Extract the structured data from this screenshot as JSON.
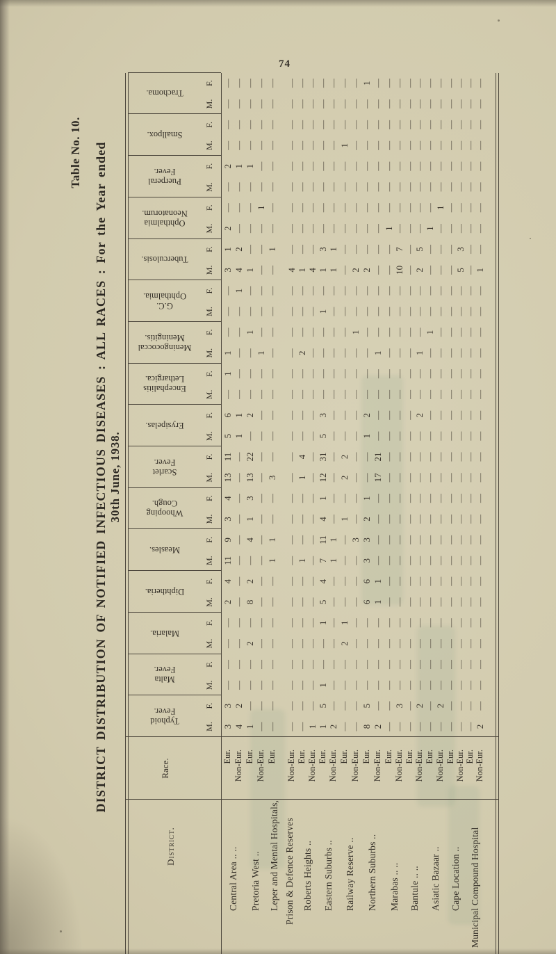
{
  "page": {
    "number": "74"
  },
  "title": "Table No. 10.",
  "heading": "DISTRICT DISTRIBUTION OF NOTIFIED INFECTIOUS DISEASES : ALL RACES : For the Year ended",
  "heading_date": "30th June, 1938.",
  "table": {
    "district_header": "District.",
    "race_header": "Race.",
    "sex_labels": [
      "M.",
      "F."
    ],
    "race_labels": [
      "Eur.",
      "Non-Eur."
    ],
    "districts": [
      {
        "name": "Central Area ..  ..",
        "lines": [
          "Central Area ..  .."
        ]
      },
      {
        "name": "Pretoria West ..",
        "lines": [
          "Pretoria West  .."
        ]
      },
      {
        "name": "Leper and Mental Hospitals, Prison & Defence Reserves",
        "lines": [
          "Leper and Mental Hospitals,",
          "Prison & Defence Reserves"
        ]
      },
      {
        "name": "Roberts Heights ..",
        "lines": [
          "Roberts Heights  .."
        ]
      },
      {
        "name": "Eastern Suburbs ..",
        "lines": [
          "Eastern Suburbs  .."
        ]
      },
      {
        "name": "Railway Reserve ..",
        "lines": [
          "Railway Reserve  .."
        ]
      },
      {
        "name": "Northern Suburbs ..",
        "lines": [
          "Northern Suburbs  .."
        ]
      },
      {
        "name": "Marabas ..  ..",
        "lines": [
          "Marabas ..  .."
        ]
      },
      {
        "name": "Bantule ..  ..",
        "lines": [
          "Bantule ..  .."
        ]
      },
      {
        "name": "Asiatic Bazaar ..",
        "lines": [
          "Asiatic Bazaar  .."
        ]
      },
      {
        "name": "Cape Location ..",
        "lines": [
          "Cape Location  .."
        ]
      },
      {
        "name": "Municipal Compound Hospital",
        "lines": [
          "Municipal Compound Hospital"
        ]
      }
    ],
    "diseases": [
      {
        "name": "Typhoid Fever.",
        "lines": [
          "Typhoid",
          "Fever."
        ],
        "m": [
          3,
          4,
          1,
          null,
          null,
          null,
          null,
          1,
          1,
          2,
          null,
          null,
          8,
          2,
          null,
          null,
          null,
          null,
          null,
          null,
          null,
          null,
          null,
          2
        ],
        "f": [
          3,
          2,
          null,
          null,
          null,
          null,
          null,
          null,
          5,
          null,
          null,
          null,
          5,
          null,
          null,
          3,
          null,
          2,
          null,
          2,
          null,
          null,
          null,
          null
        ]
      },
      {
        "name": "Malta Fever.",
        "lines": [
          "Malta",
          "Fever."
        ],
        "m": [
          null,
          null,
          null,
          null,
          null,
          null,
          null,
          null,
          1,
          null,
          null,
          null,
          null,
          null,
          null,
          null,
          null,
          null,
          null,
          null,
          null,
          null,
          null,
          null
        ],
        "f": [
          null,
          null,
          null,
          null,
          null,
          null,
          null,
          null,
          null,
          null,
          null,
          null,
          null,
          null,
          null,
          null,
          null,
          null,
          null,
          null,
          null,
          null,
          null,
          null
        ]
      },
      {
        "name": "Malaria.",
        "lines": [
          "Malaria."
        ],
        "m": [
          null,
          null,
          2,
          null,
          null,
          null,
          null,
          null,
          null,
          null,
          2,
          null,
          null,
          null,
          null,
          null,
          null,
          null,
          null,
          null,
          null,
          null,
          null,
          null
        ],
        "f": [
          null,
          null,
          null,
          null,
          null,
          null,
          null,
          null,
          1,
          null,
          1,
          null,
          null,
          null,
          null,
          null,
          null,
          null,
          null,
          null,
          null,
          null,
          null,
          null
        ]
      },
      {
        "name": "Diphtheria.",
        "lines": [
          "Diphtheria."
        ],
        "m": [
          2,
          null,
          8,
          null,
          null,
          null,
          null,
          null,
          5,
          null,
          null,
          null,
          6,
          1,
          null,
          null,
          null,
          null,
          null,
          null,
          null,
          null,
          null,
          null
        ],
        "f": [
          4,
          null,
          2,
          null,
          null,
          null,
          null,
          null,
          4,
          null,
          null,
          null,
          6,
          1,
          null,
          null,
          null,
          null,
          null,
          null,
          null,
          null,
          null,
          null
        ]
      },
      {
        "name": "Measles.",
        "lines": [
          "Measles."
        ],
        "m": [
          11,
          null,
          null,
          null,
          1,
          null,
          1,
          null,
          7,
          1,
          null,
          null,
          3,
          null,
          null,
          null,
          null,
          null,
          null,
          null,
          null,
          null,
          null,
          null
        ],
        "f": [
          9,
          null,
          4,
          null,
          1,
          null,
          null,
          null,
          11,
          1,
          null,
          3,
          3,
          null,
          null,
          null,
          null,
          null,
          null,
          null,
          null,
          null,
          null,
          null
        ]
      },
      {
        "name": "Whooping Cough.",
        "lines": [
          "Whooping",
          "Cough."
        ],
        "m": [
          3,
          null,
          1,
          null,
          null,
          null,
          null,
          null,
          4,
          null,
          1,
          null,
          2,
          null,
          null,
          null,
          null,
          null,
          null,
          null,
          null,
          null,
          null,
          null
        ],
        "f": [
          4,
          null,
          3,
          null,
          null,
          null,
          null,
          null,
          1,
          null,
          null,
          null,
          1,
          null,
          null,
          null,
          null,
          null,
          null,
          null,
          null,
          null,
          null,
          null
        ]
      },
      {
        "name": "Scarlet Fever.",
        "lines": [
          "Scarlet",
          "Fever."
        ],
        "m": [
          13,
          null,
          13,
          null,
          3,
          null,
          1,
          null,
          12,
          null,
          2,
          null,
          null,
          17,
          null,
          null,
          null,
          null,
          null,
          null,
          null,
          null,
          null,
          null
        ],
        "f": [
          11,
          null,
          22,
          null,
          null,
          null,
          4,
          null,
          31,
          null,
          2,
          null,
          null,
          21,
          null,
          null,
          null,
          null,
          null,
          null,
          null,
          null,
          null,
          null
        ]
      },
      {
        "name": "Erysipelas.",
        "lines": [
          "Erysipelas."
        ],
        "m": [
          5,
          1,
          null,
          null,
          null,
          null,
          null,
          null,
          5,
          null,
          null,
          null,
          1,
          null,
          null,
          null,
          null,
          null,
          null,
          null,
          null,
          null,
          null,
          null
        ],
        "f": [
          6,
          1,
          2,
          null,
          null,
          null,
          null,
          null,
          3,
          null,
          null,
          null,
          2,
          null,
          null,
          null,
          null,
          2,
          null,
          null,
          null,
          null,
          null,
          null
        ]
      },
      {
        "name": "Encephalitis Lethargica.",
        "lines": [
          "Encephalitis",
          "Lethargica."
        ],
        "m": [
          null,
          null,
          null,
          null,
          null,
          null,
          null,
          null,
          null,
          null,
          null,
          null,
          null,
          null,
          null,
          null,
          null,
          null,
          null,
          null,
          null,
          null,
          null,
          null
        ],
        "f": [
          1,
          null,
          null,
          null,
          null,
          null,
          null,
          null,
          null,
          null,
          null,
          null,
          null,
          null,
          null,
          null,
          null,
          null,
          null,
          null,
          null,
          null,
          null,
          null
        ]
      },
      {
        "name": "Meningococcal Meningitis.",
        "lines": [
          "Meningococcal",
          "Meningitis."
        ],
        "m": [
          1,
          null,
          null,
          1,
          null,
          null,
          2,
          null,
          null,
          null,
          null,
          null,
          null,
          1,
          null,
          null,
          null,
          1,
          null,
          null,
          null,
          null,
          null,
          null
        ],
        "f": [
          null,
          null,
          1,
          null,
          null,
          null,
          null,
          null,
          null,
          null,
          null,
          1,
          null,
          null,
          null,
          null,
          null,
          null,
          1,
          null,
          null,
          null,
          null,
          null
        ]
      },
      {
        "name": "G.C. Ophthalmia.",
        "lines": [
          "G.C.",
          "Ophthalmia."
        ],
        "m": [
          null,
          null,
          null,
          null,
          null,
          null,
          null,
          null,
          1,
          null,
          null,
          null,
          null,
          null,
          null,
          null,
          null,
          null,
          null,
          null,
          null,
          null,
          null,
          null
        ],
        "f": [
          null,
          1,
          null,
          null,
          null,
          null,
          null,
          null,
          null,
          null,
          null,
          null,
          null,
          null,
          null,
          null,
          null,
          null,
          null,
          null,
          null,
          null,
          null,
          null
        ]
      },
      {
        "name": "Tuberculosis.",
        "lines": [
          "Tuberculosis."
        ],
        "m": [
          3,
          4,
          1,
          null,
          null,
          4,
          1,
          4,
          1,
          1,
          null,
          2,
          2,
          null,
          null,
          10,
          null,
          2,
          null,
          null,
          null,
          5,
          null,
          1
        ],
        "f": [
          1,
          2,
          null,
          null,
          1,
          null,
          null,
          null,
          3,
          1,
          null,
          null,
          null,
          null,
          null,
          7,
          null,
          5,
          null,
          null,
          null,
          3,
          null,
          null
        ]
      },
      {
        "name": "Ophthalmia Neonatorum.",
        "lines": [
          "Ophthalmia",
          "Neonatorum."
        ],
        "m": [
          2,
          null,
          null,
          null,
          null,
          null,
          null,
          null,
          null,
          null,
          null,
          null,
          null,
          null,
          1,
          null,
          null,
          null,
          1,
          null,
          null,
          null,
          null,
          null
        ],
        "f": [
          null,
          null,
          null,
          1,
          null,
          null,
          null,
          null,
          null,
          null,
          null,
          null,
          null,
          null,
          null,
          null,
          null,
          null,
          null,
          1,
          null,
          null,
          null,
          null
        ]
      },
      {
        "name": "Puerperal Fever.",
        "lines": [
          "Puerperal",
          "Fever."
        ],
        "m": [
          null,
          null,
          null,
          null,
          null,
          null,
          null,
          null,
          null,
          null,
          null,
          null,
          null,
          null,
          null,
          null,
          null,
          null,
          null,
          null,
          null,
          null,
          null,
          null
        ],
        "f": [
          2,
          1,
          1,
          null,
          null,
          null,
          null,
          null,
          null,
          null,
          null,
          null,
          null,
          null,
          null,
          null,
          null,
          null,
          null,
          null,
          null,
          null,
          null,
          null
        ]
      },
      {
        "name": "Smallpox.",
        "lines": [
          "Smallpox."
        ],
        "m": [
          null,
          null,
          null,
          null,
          null,
          null,
          null,
          null,
          null,
          null,
          1,
          null,
          null,
          null,
          null,
          null,
          null,
          null,
          null,
          null,
          null,
          null,
          null,
          null
        ],
        "f": [
          null,
          null,
          null,
          null,
          null,
          null,
          null,
          null,
          null,
          null,
          null,
          null,
          null,
          null,
          null,
          null,
          null,
          null,
          null,
          null,
          null,
          null,
          null,
          null
        ]
      },
      {
        "name": "Trachoma.",
        "lines": [
          "Trachoma."
        ],
        "m": [
          null,
          null,
          null,
          null,
          null,
          null,
          null,
          null,
          null,
          null,
          null,
          null,
          null,
          null,
          null,
          null,
          null,
          null,
          null,
          null,
          null,
          null,
          null,
          null
        ],
        "f": [
          null,
          null,
          null,
          null,
          null,
          null,
          null,
          null,
          null,
          null,
          null,
          null,
          1,
          null,
          null,
          null,
          null,
          null,
          null,
          null,
          null,
          null,
          null,
          null
        ]
      }
    ],
    "empty_cell_symbol": "—"
  }
}
